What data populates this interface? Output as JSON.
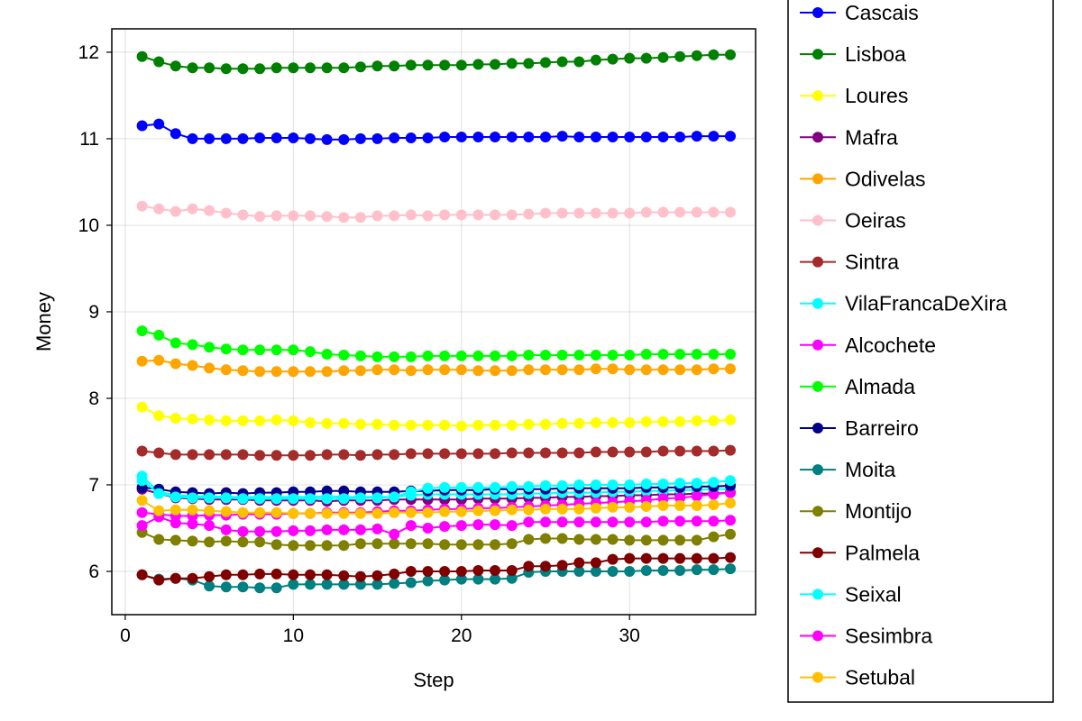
{
  "chart_data": {
    "type": "line",
    "title": "",
    "xlabel": "Step",
    "ylabel": "Money",
    "xlim": [
      -0.8,
      37.5
    ],
    "ylim": [
      5.5,
      12.27
    ],
    "xticks": [
      0,
      10,
      20,
      30
    ],
    "yticks": [
      6,
      7,
      8,
      9,
      10,
      11,
      12
    ],
    "grid": true,
    "legend_position": "right",
    "x": [
      1,
      2,
      3,
      4,
      5,
      6,
      7,
      8,
      9,
      10,
      11,
      12,
      13,
      14,
      15,
      16,
      17,
      18,
      19,
      20,
      21,
      22,
      23,
      24,
      25,
      26,
      27,
      28,
      29,
      30,
      31,
      32,
      33,
      34,
      35,
      36
    ],
    "series": [
      {
        "name": "Cascais",
        "color": "#0000ff",
        "values": [
          11.15,
          11.17,
          11.06,
          11.0,
          11.0,
          11.0,
          11.0,
          11.01,
          11.01,
          11.01,
          11.0,
          10.99,
          10.99,
          11.0,
          11.0,
          11.01,
          11.01,
          11.01,
          11.02,
          11.02,
          11.02,
          11.02,
          11.02,
          11.02,
          11.02,
          11.03,
          11.02,
          11.02,
          11.02,
          11.02,
          11.02,
          11.02,
          11.02,
          11.03,
          11.03,
          11.03
        ]
      },
      {
        "name": "Lisboa",
        "color": "#008000",
        "values": [
          11.95,
          11.89,
          11.84,
          11.82,
          11.82,
          11.81,
          11.81,
          11.81,
          11.82,
          11.82,
          11.82,
          11.82,
          11.82,
          11.83,
          11.84,
          11.84,
          11.85,
          11.85,
          11.85,
          11.85,
          11.86,
          11.86,
          11.87,
          11.87,
          11.88,
          11.89,
          11.89,
          11.91,
          11.92,
          11.93,
          11.93,
          11.94,
          11.95,
          11.96,
          11.97,
          11.97
        ]
      },
      {
        "name": "Loures",
        "color": "#ffff00",
        "values": [
          7.9,
          7.8,
          7.77,
          7.76,
          7.75,
          7.74,
          7.74,
          7.74,
          7.75,
          7.74,
          7.72,
          7.71,
          7.71,
          7.7,
          7.7,
          7.69,
          7.69,
          7.69,
          7.69,
          7.68,
          7.69,
          7.69,
          7.69,
          7.7,
          7.7,
          7.71,
          7.71,
          7.72,
          7.72,
          7.72,
          7.73,
          7.73,
          7.73,
          7.74,
          7.74,
          7.75
        ]
      },
      {
        "name": "Mafra",
        "color": "#800080",
        "values": [
          6.95,
          6.9,
          6.85,
          6.84,
          6.83,
          6.83,
          6.83,
          6.82,
          6.82,
          6.82,
          6.82,
          6.81,
          6.82,
          6.82,
          6.82,
          6.83,
          6.83,
          6.83,
          6.83,
          6.83,
          6.84,
          6.84,
          6.84,
          6.85,
          6.85,
          6.86,
          6.86,
          6.87,
          6.87,
          6.88,
          6.88,
          6.89,
          6.89,
          6.9,
          6.9,
          6.91
        ]
      },
      {
        "name": "Odivelas",
        "color": "#ffa500",
        "values": [
          8.43,
          8.44,
          8.4,
          8.38,
          8.35,
          8.33,
          8.32,
          8.31,
          8.31,
          8.31,
          8.31,
          8.31,
          8.32,
          8.32,
          8.33,
          8.33,
          8.32,
          8.33,
          8.33,
          8.33,
          8.32,
          8.32,
          8.32,
          8.33,
          8.33,
          8.33,
          8.33,
          8.34,
          8.34,
          8.33,
          8.33,
          8.33,
          8.33,
          8.33,
          8.34,
          8.34
        ]
      },
      {
        "name": "Oeiras",
        "color": "#ffc0cb",
        "values": [
          10.22,
          10.19,
          10.16,
          10.19,
          10.17,
          10.14,
          10.12,
          10.1,
          10.11,
          10.11,
          10.11,
          10.1,
          10.09,
          10.09,
          10.11,
          10.11,
          10.12,
          10.11,
          10.12,
          10.12,
          10.12,
          10.12,
          10.12,
          10.13,
          10.14,
          10.14,
          10.14,
          10.14,
          10.14,
          10.14,
          10.15,
          10.15,
          10.15,
          10.15,
          10.15,
          10.15
        ]
      },
      {
        "name": "Sintra",
        "color": "#a52a2a",
        "values": [
          7.39,
          7.37,
          7.35,
          7.35,
          7.35,
          7.35,
          7.35,
          7.34,
          7.34,
          7.34,
          7.34,
          7.35,
          7.35,
          7.34,
          7.35,
          7.35,
          7.36,
          7.36,
          7.36,
          7.36,
          7.36,
          7.36,
          7.37,
          7.37,
          7.37,
          7.37,
          7.37,
          7.38,
          7.38,
          7.38,
          7.38,
          7.39,
          7.39,
          7.39,
          7.39,
          7.4
        ]
      },
      {
        "name": "VilaFrancaDeXira",
        "color": "#00ffff",
        "values": [
          7.1,
          6.92,
          6.88,
          6.87,
          6.87,
          6.86,
          6.86,
          6.86,
          6.86,
          6.86,
          6.86,
          6.87,
          6.86,
          6.86,
          6.86,
          6.86,
          6.88,
          6.89,
          6.89,
          6.89,
          6.89,
          6.89,
          6.89,
          6.9,
          6.9,
          6.91,
          6.91,
          6.91,
          6.92,
          6.92,
          6.93,
          6.93,
          6.94,
          6.94,
          6.95,
          6.95
        ]
      },
      {
        "name": "Alcochete",
        "color": "#ff00ff",
        "values": [
          6.68,
          6.66,
          6.64,
          6.64,
          6.65,
          6.65,
          6.66,
          6.66,
          6.66,
          6.67,
          6.67,
          6.68,
          6.68,
          6.68,
          6.69,
          6.7,
          6.7,
          6.71,
          6.72,
          6.72,
          6.73,
          6.73,
          6.74,
          6.75,
          6.76,
          6.77,
          6.78,
          6.79,
          6.8,
          6.81,
          6.82,
          6.84,
          6.85,
          6.87,
          6.89,
          6.91
        ]
      },
      {
        "name": "Almada",
        "color": "#00ff00",
        "values": [
          8.78,
          8.73,
          8.64,
          8.62,
          8.59,
          8.57,
          8.56,
          8.56,
          8.56,
          8.56,
          8.54,
          8.51,
          8.5,
          8.49,
          8.48,
          8.48,
          8.48,
          8.49,
          8.49,
          8.49,
          8.49,
          8.49,
          8.49,
          8.5,
          8.5,
          8.5,
          8.5,
          8.5,
          8.5,
          8.5,
          8.51,
          8.51,
          8.51,
          8.51,
          8.51,
          8.51
        ]
      },
      {
        "name": "Barreiro",
        "color": "#00008b",
        "values": [
          6.97,
          6.95,
          6.92,
          6.91,
          6.9,
          6.91,
          6.9,
          6.91,
          6.91,
          6.92,
          6.92,
          6.93,
          6.93,
          6.92,
          6.92,
          6.92,
          6.93,
          6.93,
          6.94,
          6.94,
          6.94,
          6.95,
          6.95,
          6.95,
          6.95,
          6.96,
          6.96,
          6.96,
          6.96,
          6.96,
          6.97,
          6.97,
          6.97,
          6.98,
          6.98,
          6.99
        ]
      },
      {
        "name": "Moita",
        "color": "#008080",
        "values": [
          5.96,
          5.91,
          5.92,
          5.9,
          5.83,
          5.82,
          5.82,
          5.81,
          5.81,
          5.85,
          5.85,
          5.85,
          5.85,
          5.85,
          5.85,
          5.86,
          5.87,
          5.89,
          5.9,
          5.91,
          5.91,
          5.91,
          5.92,
          5.99,
          6.0,
          6.0,
          6.0,
          6.0,
          6.0,
          6.0,
          6.01,
          6.01,
          6.01,
          6.02,
          6.02,
          6.03
        ]
      },
      {
        "name": "Montijo",
        "color": "#808000",
        "values": [
          6.45,
          6.37,
          6.36,
          6.35,
          6.34,
          6.35,
          6.34,
          6.34,
          6.31,
          6.3,
          6.3,
          6.3,
          6.3,
          6.32,
          6.32,
          6.32,
          6.32,
          6.32,
          6.31,
          6.31,
          6.31,
          6.31,
          6.32,
          6.37,
          6.38,
          6.38,
          6.37,
          6.37,
          6.37,
          6.36,
          6.36,
          6.36,
          6.36,
          6.36,
          6.4,
          6.43
        ]
      },
      {
        "name": "Palmela",
        "color": "#800000",
        "values": [
          5.96,
          5.9,
          5.92,
          5.92,
          5.94,
          5.96,
          5.96,
          5.97,
          5.97,
          5.96,
          5.96,
          5.96,
          5.95,
          5.94,
          5.95,
          5.97,
          6.0,
          6.0,
          6.0,
          6.0,
          6.01,
          6.01,
          6.01,
          6.06,
          6.06,
          6.07,
          6.1,
          6.1,
          6.14,
          6.15,
          6.15,
          6.15,
          6.15,
          6.15,
          6.15,
          6.16
        ]
      },
      {
        "name": "Seixal",
        "color": "#00ffff",
        "values": [
          7.05,
          6.9,
          6.86,
          6.85,
          6.85,
          6.85,
          6.84,
          6.84,
          6.84,
          6.84,
          6.84,
          6.84,
          6.84,
          6.85,
          6.85,
          6.86,
          6.92,
          6.96,
          6.97,
          6.97,
          6.97,
          6.97,
          6.98,
          6.98,
          6.99,
          6.99,
          7.0,
          7.0,
          7.0,
          7.0,
          7.01,
          7.01,
          7.02,
          7.02,
          7.03,
          7.05
        ]
      },
      {
        "name": "Sesimbra",
        "color": "#ff00ff",
        "values": [
          6.53,
          6.63,
          6.56,
          6.55,
          6.53,
          6.48,
          6.46,
          6.46,
          6.46,
          6.47,
          6.47,
          6.48,
          6.48,
          6.48,
          6.49,
          6.43,
          6.53,
          6.5,
          6.52,
          6.53,
          6.54,
          6.54,
          6.53,
          6.57,
          6.57,
          6.57,
          6.57,
          6.57,
          6.57,
          6.57,
          6.57,
          6.58,
          6.58,
          6.58,
          6.58,
          6.59
        ]
      },
      {
        "name": "Setubal",
        "color": "#ffc000",
        "values": [
          6.82,
          6.7,
          6.71,
          6.71,
          6.7,
          6.69,
          6.68,
          6.68,
          6.68,
          6.67,
          6.67,
          6.67,
          6.67,
          6.67,
          6.67,
          6.68,
          6.68,
          6.68,
          6.69,
          6.69,
          6.7,
          6.7,
          6.71,
          6.71,
          6.72,
          6.72,
          6.72,
          6.73,
          6.74,
          6.74,
          6.75,
          6.76,
          6.76,
          6.76,
          6.77,
          6.79
        ]
      }
    ]
  }
}
